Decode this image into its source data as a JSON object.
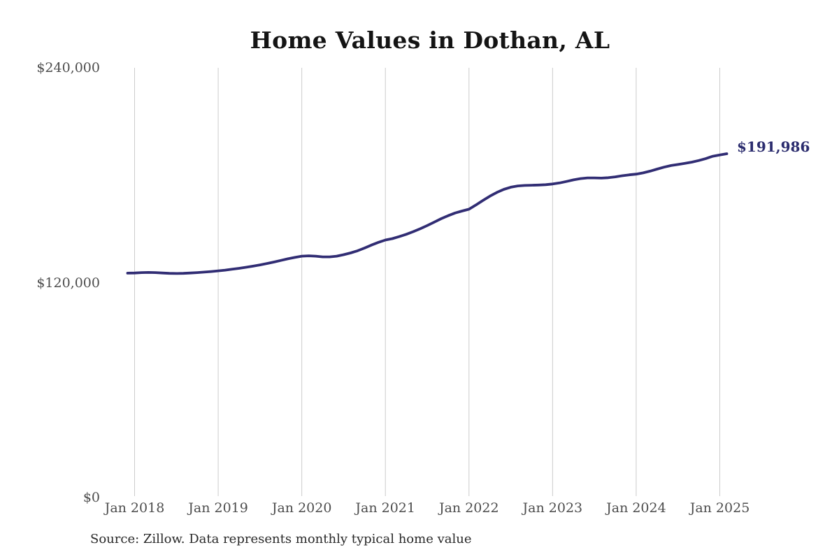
{
  "title": "Home Values in Dothan, AL",
  "source_note": "Source: Zillow. Data represents monthly typical home value",
  "end_value_label": "$191,986",
  "colors": {
    "background": "#ffffff",
    "line": "#312d74",
    "gridline": "#cccccc",
    "title_text": "#141414",
    "tick_text": "#4d4d4d",
    "end_label_text": "#2b2c6e",
    "source_text": "#282828"
  },
  "chart_data": {
    "type": "line",
    "title": "Home Values in Dothan, AL",
    "series_name": "Monthly typical home value",
    "xlabel": "",
    "ylabel": "",
    "ylim": [
      0,
      240000
    ],
    "grid": "vertical-yearly-only",
    "legend": false,
    "last_point_annotation": "$191,986",
    "y_tick_values": [
      240000,
      120000,
      0
    ],
    "y_tick_labels": [
      "$240,000",
      "$120,000",
      "$0"
    ],
    "x_tick_labels": [
      "Jan 2018",
      "Jan 2019",
      "Jan 2020",
      "Jan 2021",
      "Jan 2022",
      "Jan 2023",
      "Jan 2024",
      "Jan 2025"
    ],
    "months": [
      "Dec 2017",
      "Jan 2018",
      "Feb 2018",
      "Mar 2018",
      "Apr 2018",
      "May 2018",
      "Jun 2018",
      "Jul 2018",
      "Aug 2018",
      "Sep 2018",
      "Oct 2018",
      "Nov 2018",
      "Dec 2018",
      "Jan 2019",
      "Feb 2019",
      "Mar 2019",
      "Apr 2019",
      "May 2019",
      "Jun 2019",
      "Jul 2019",
      "Aug 2019",
      "Sep 2019",
      "Oct 2019",
      "Nov 2019",
      "Dec 2019",
      "Jan 2020",
      "Feb 2020",
      "Mar 2020",
      "Apr 2020",
      "May 2020",
      "Jun 2020",
      "Jul 2020",
      "Aug 2020",
      "Sep 2020",
      "Oct 2020",
      "Nov 2020",
      "Dec 2020",
      "Jan 2021",
      "Feb 2021",
      "Mar 2021",
      "Apr 2021",
      "May 2021",
      "Jun 2021",
      "Jul 2021",
      "Aug 2021",
      "Sep 2021",
      "Oct 2021",
      "Nov 2021",
      "Dec 2021",
      "Jan 2022",
      "Feb 2022",
      "Mar 2022",
      "Apr 2022",
      "May 2022",
      "Jun 2022",
      "Jul 2022",
      "Aug 2022",
      "Sep 2022",
      "Oct 2022",
      "Nov 2022",
      "Dec 2022",
      "Jan 2023",
      "Feb 2023",
      "Mar 2023",
      "Apr 2023",
      "May 2023",
      "Jun 2023",
      "Jul 2023",
      "Aug 2023",
      "Sep 2023",
      "Oct 2023",
      "Nov 2023",
      "Dec 2023",
      "Jan 2024",
      "Feb 2024",
      "Mar 2024",
      "Apr 2024",
      "May 2024",
      "Jun 2024",
      "Jul 2024",
      "Aug 2024",
      "Sep 2024",
      "Oct 2024",
      "Nov 2024",
      "Dec 2024",
      "Jan 2025",
      "Feb 2025"
    ],
    "values": [
      125300,
      125400,
      125600,
      125700,
      125600,
      125400,
      125200,
      125100,
      125200,
      125400,
      125600,
      125900,
      126200,
      126600,
      127000,
      127500,
      128000,
      128600,
      129200,
      129900,
      130700,
      131500,
      132400,
      133300,
      134100,
      134800,
      135000,
      134800,
      134400,
      134400,
      134800,
      135600,
      136600,
      137800,
      139300,
      141000,
      142500,
      143800,
      144600,
      145700,
      147000,
      148500,
      150100,
      151900,
      153800,
      155700,
      157400,
      158900,
      160000,
      161000,
      163400,
      165900,
      168300,
      170400,
      172100,
      173300,
      174000,
      174300,
      174400,
      174500,
      174700,
      175100,
      175700,
      176500,
      177400,
      178100,
      178500,
      178500,
      178400,
      178600,
      179100,
      179700,
      180200,
      180600,
      181300,
      182300,
      183400,
      184500,
      185400,
      186000,
      186600,
      187300,
      188200,
      189300,
      190600,
      191300,
      191986
    ]
  }
}
